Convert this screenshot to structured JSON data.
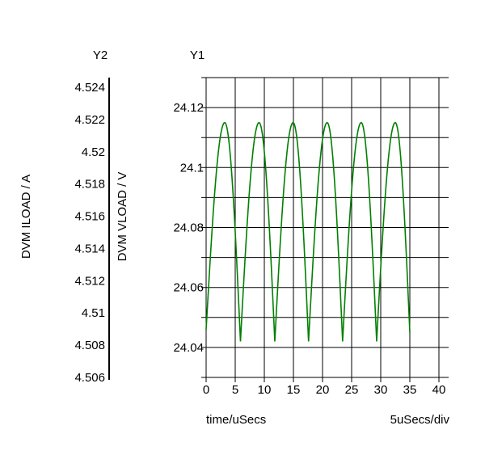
{
  "chart_data": {
    "type": "line",
    "xlabel": "time/uSecs",
    "x_scale_label": "5uSecs/div",
    "xlim": [
      0,
      40
    ],
    "x_ticks": [
      "0",
      "5",
      "10",
      "15",
      "20",
      "25",
      "30",
      "35",
      "40"
    ],
    "grid": true,
    "y1": {
      "axis_title": "Y1",
      "label": "DVM VLOAD / V",
      "ylim": [
        24.03,
        24.13
      ],
      "ticks": [
        "24.12",
        "24.1",
        "24.08",
        "24.06",
        "24.04"
      ],
      "tick_values": [
        24.12,
        24.1,
        24.08,
        24.06,
        24.04
      ]
    },
    "y2": {
      "axis_title": "Y2",
      "label": "DVM ILOAD / A",
      "ylim": [
        4.506,
        4.524
      ],
      "ticks": [
        "4.524",
        "4.522",
        "4.52",
        "4.518",
        "4.516",
        "4.514",
        "4.512",
        "4.51",
        "4.508",
        "4.506"
      ],
      "tick_values": [
        4.524,
        4.522,
        4.52,
        4.518,
        4.516,
        4.514,
        4.512,
        4.51,
        4.508,
        4.506
      ]
    },
    "series": [
      {
        "axis": "y1",
        "color": "#008000",
        "x": [
          0,
          3.2,
          5.9,
          9.1,
          11.8,
          14.95,
          17.6,
          20.8,
          23.45,
          26.65,
          29.3,
          32.5,
          35
        ],
        "y": [
          24.046,
          24.115,
          24.042,
          24.115,
          24.042,
          24.115,
          24.042,
          24.115,
          24.042,
          24.115,
          24.042,
          24.115,
          24.045
        ]
      }
    ]
  }
}
